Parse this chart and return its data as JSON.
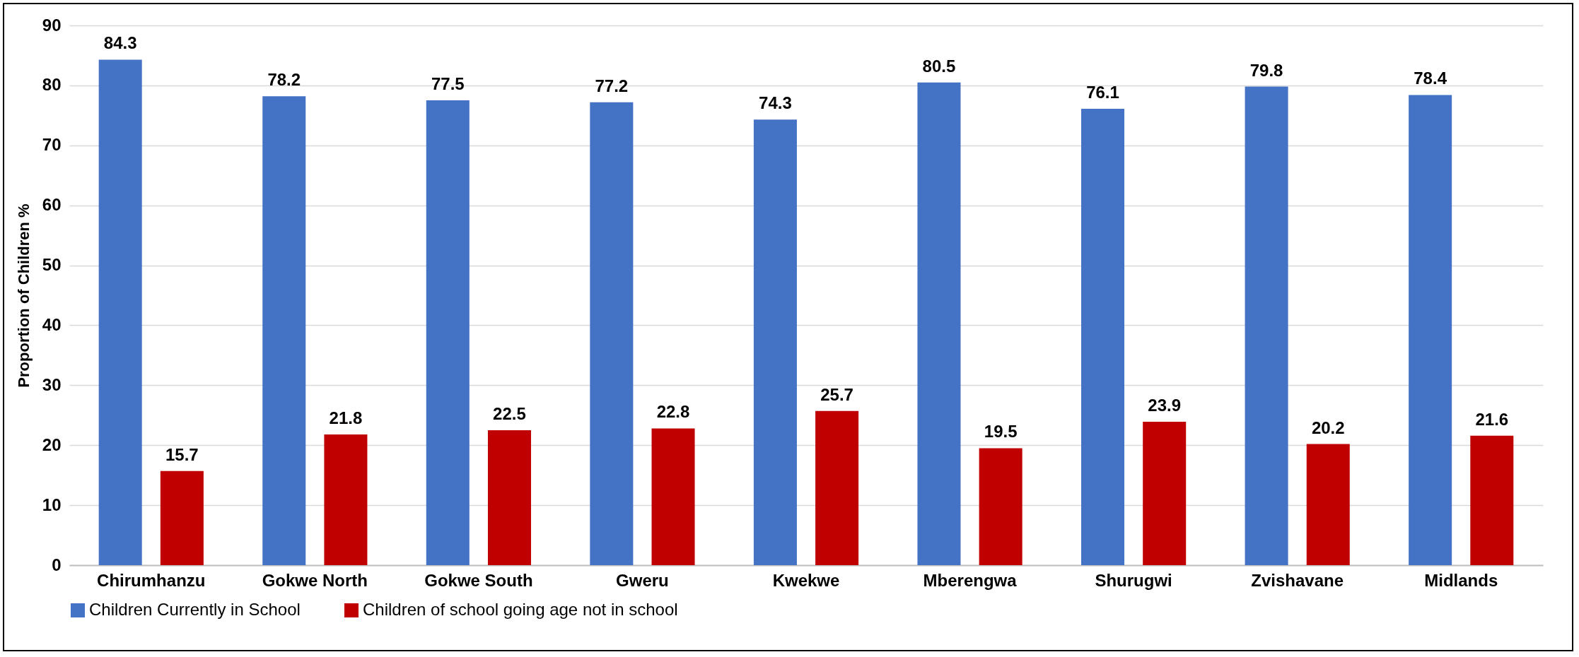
{
  "chart_data": {
    "type": "bar",
    "ylabel": "Proportion of Children %",
    "categories": [
      "Chirumhanzu",
      "Gokwe North",
      "Gokwe South",
      "Gweru",
      "Kwekwe",
      "Mberengwa",
      "Shurugwi",
      "Zvishavane",
      "Midlands"
    ],
    "series": [
      {
        "name": "Children Currently in School",
        "color": "#4472c4",
        "values": [
          84.3,
          78.2,
          77.5,
          77.2,
          74.3,
          80.5,
          76.1,
          79.8,
          78.4
        ]
      },
      {
        "name": "Children of school going age not in school",
        "color": "#c00000",
        "values": [
          15.7,
          21.8,
          22.5,
          22.8,
          25.7,
          19.5,
          23.9,
          20.2,
          21.6
        ]
      }
    ],
    "ylim": [
      0,
      90
    ],
    "yticks": [
      0,
      10,
      20,
      30,
      40,
      50,
      60,
      70,
      80,
      90
    ],
    "grid": "y",
    "legend": "bottom",
    "data_labels": true
  }
}
